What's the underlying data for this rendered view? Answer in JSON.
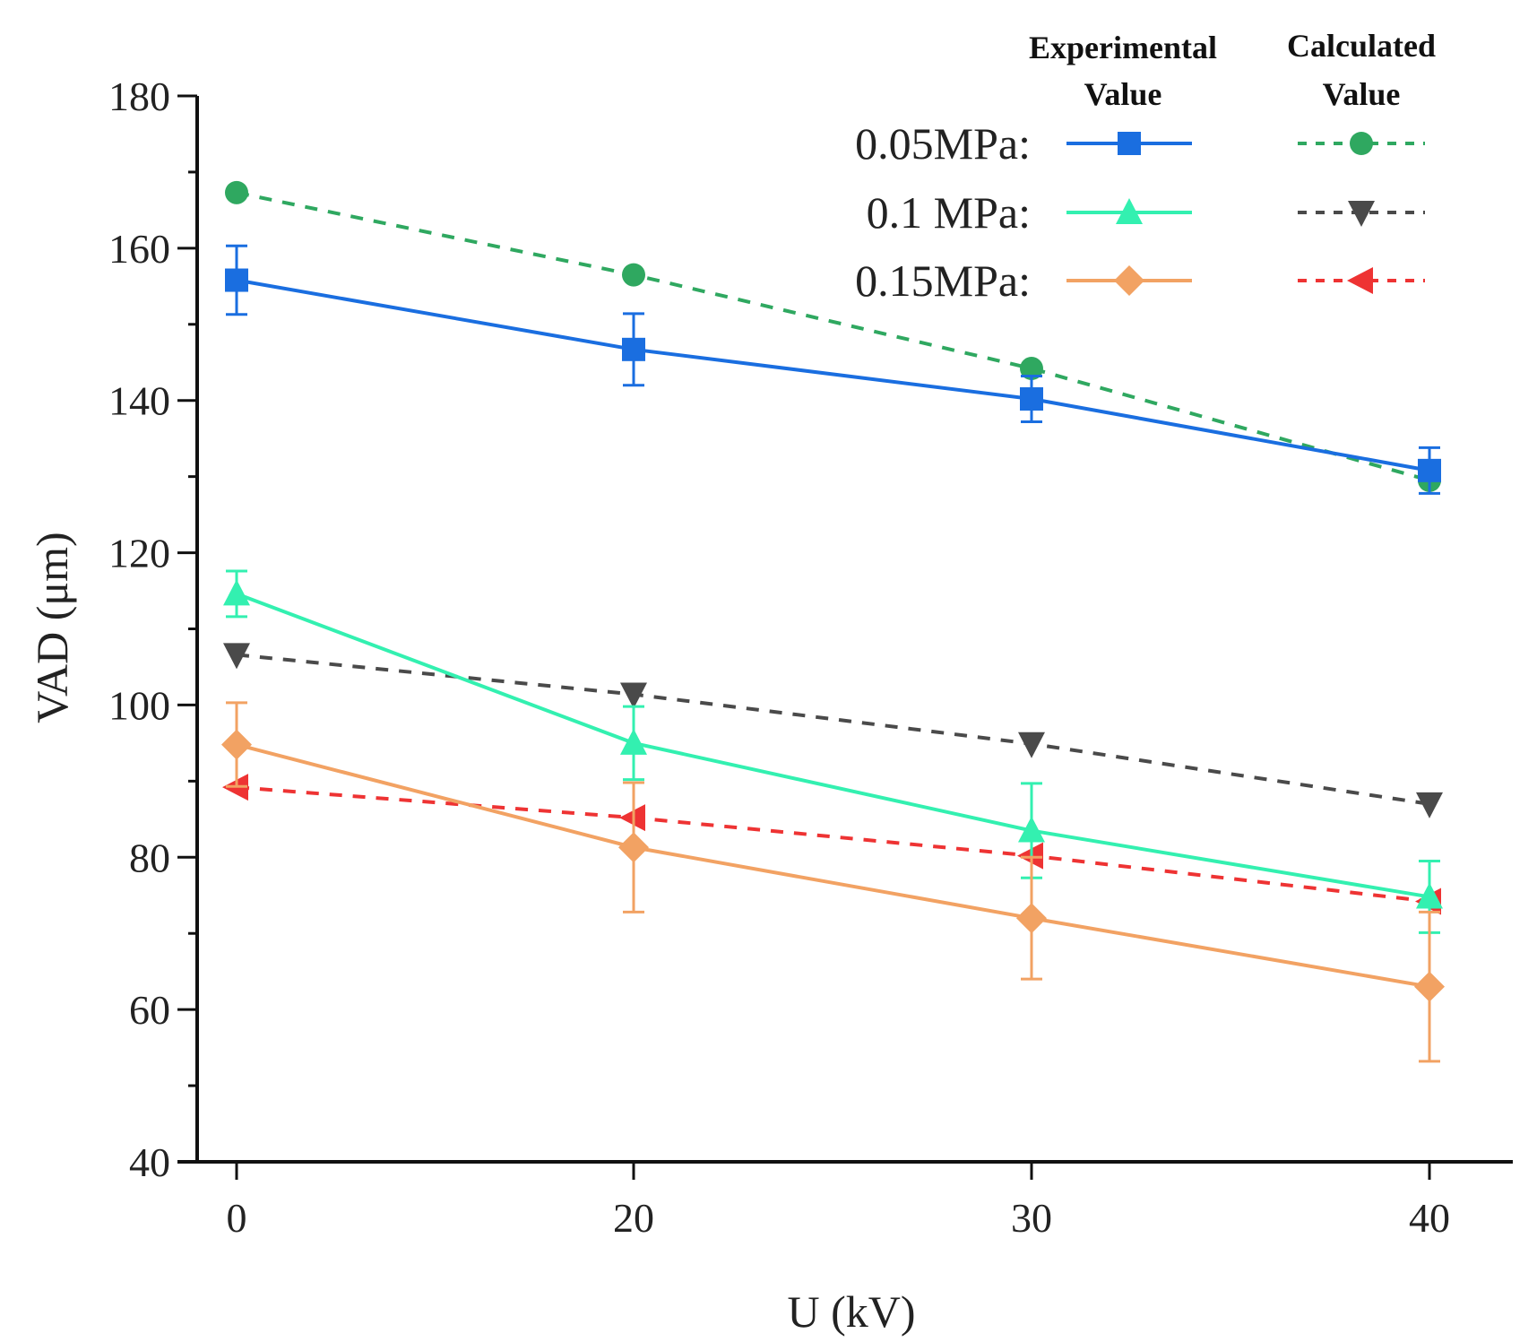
{
  "chart_data": {
    "type": "line",
    "xlabel": "U (kV)",
    "ylabel": "VAD (μm)",
    "categories": [
      "0",
      "20",
      "30",
      "40"
    ],
    "ylim": [
      40,
      180
    ],
    "yticks": [
      "40",
      "60",
      "80",
      "100",
      "120",
      "140",
      "160",
      "180"
    ],
    "legend_placement": "top-right",
    "legend_headers": {
      "experimental": "Experimental Value",
      "calculated": "Calculated Value",
      "experimental_line1": "Experimental",
      "experimental_line2": "Value",
      "calculated_line1": "Calculated",
      "calculated_line2": "Value"
    },
    "series": [
      {
        "name": "0.05MPa:",
        "group": "Experimental",
        "color": "#1a6ee0",
        "marker": "square",
        "dash": false,
        "values": [
          155.8,
          146.7,
          140.2,
          130.8
        ],
        "errors": [
          4.5,
          4.7,
          3.0,
          3.0
        ]
      },
      {
        "name": "0.1 MPa:",
        "group": "Experimental",
        "color": "#33f0b0",
        "marker": "triangle-up",
        "dash": false,
        "values": [
          114.6,
          95.0,
          83.5,
          74.8
        ],
        "errors": [
          3.0,
          4.8,
          6.2,
          4.7
        ]
      },
      {
        "name": "0.15MPa:",
        "group": "Experimental",
        "color": "#f2a263",
        "marker": "diamond",
        "dash": false,
        "values": [
          94.8,
          81.3,
          72.0,
          63.0
        ],
        "errors": [
          5.5,
          8.5,
          8.0,
          9.8
        ]
      },
      {
        "name": "0.05MPa:",
        "group": "Calculated",
        "color": "#2fa860",
        "marker": "circle",
        "dash": true,
        "values": [
          167.3,
          156.5,
          144.2,
          129.5
        ]
      },
      {
        "name": "0.1 MPa:",
        "group": "Calculated",
        "color": "#4a4a4a",
        "marker": "triangle-down",
        "dash": true,
        "values": [
          106.6,
          101.4,
          94.9,
          87.0
        ]
      },
      {
        "name": "0.15MPa:",
        "group": "Calculated",
        "color": "#ee3333",
        "marker": "triangle-left",
        "dash": true,
        "values": [
          89.2,
          85.2,
          80.2,
          74.2
        ]
      }
    ]
  }
}
